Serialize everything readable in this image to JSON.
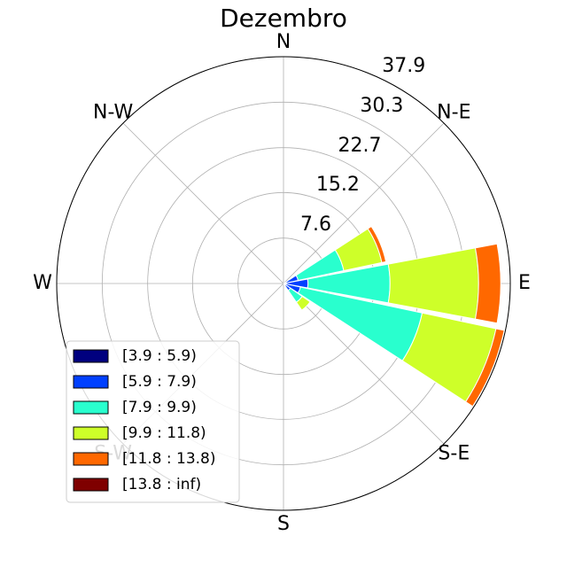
{
  "chart_data": {
    "type": "windrose",
    "title": "Dezembro",
    "x": [
      0,
      22.5,
      45,
      67.5,
      90,
      112.5,
      135,
      157.5,
      180,
      202.5,
      225,
      247.5,
      270,
      292.5,
      315,
      337.5
    ],
    "direction_labels": [
      "N",
      "N-E",
      "E",
      "S-E",
      "S",
      "S-W",
      "W",
      "N-W"
    ],
    "series": [
      {
        "name": "[3.9 : 5.9)",
        "color": "#00007f",
        "values": [
          0,
          0,
          0,
          0.3,
          0.5,
          0.4,
          0.2,
          0,
          0,
          0,
          0,
          0,
          0,
          0,
          0,
          0
        ]
      },
      {
        "name": "[5.9 : 7.9)",
        "color": "#0040ff",
        "values": [
          0,
          0,
          0,
          2.2,
          3.6,
          2.5,
          1.2,
          0,
          0,
          0,
          0,
          0,
          0,
          0,
          0,
          0
        ]
      },
      {
        "name": "[7.9 : 9.9)",
        "color": "#29ffce",
        "values": [
          0,
          0,
          0,
          7.8,
          13.7,
          20.8,
          2.4,
          0,
          0,
          0,
          0,
          0,
          0,
          0,
          0,
          0
        ]
      },
      {
        "name": "[9.9 : 11.8)",
        "color": "#ceff29",
        "values": [
          0,
          0,
          0,
          6.5,
          14.8,
          12.6,
          1.6,
          0,
          0,
          0,
          0,
          0,
          0,
          0,
          0,
          0
        ]
      },
      {
        "name": "[11.8 : 13.8)",
        "color": "#ff6800",
        "values": [
          0,
          0,
          0,
          0.7,
          3.7,
          1.4,
          0,
          0,
          0,
          0,
          0,
          0,
          0,
          0,
          0,
          0
        ]
      },
      {
        "name": "[13.8 : inf)",
        "color": "#7f0000",
        "values": [
          0,
          0,
          0,
          0,
          0,
          0,
          0,
          0,
          0,
          0,
          0,
          0,
          0,
          0,
          0,
          0
        ]
      }
    ],
    "ylim": [
      0,
      37.9
    ],
    "yticks": [
      7.6,
      15.2,
      22.7,
      30.3,
      37.9
    ],
    "grid": true,
    "legend": "lower left"
  }
}
